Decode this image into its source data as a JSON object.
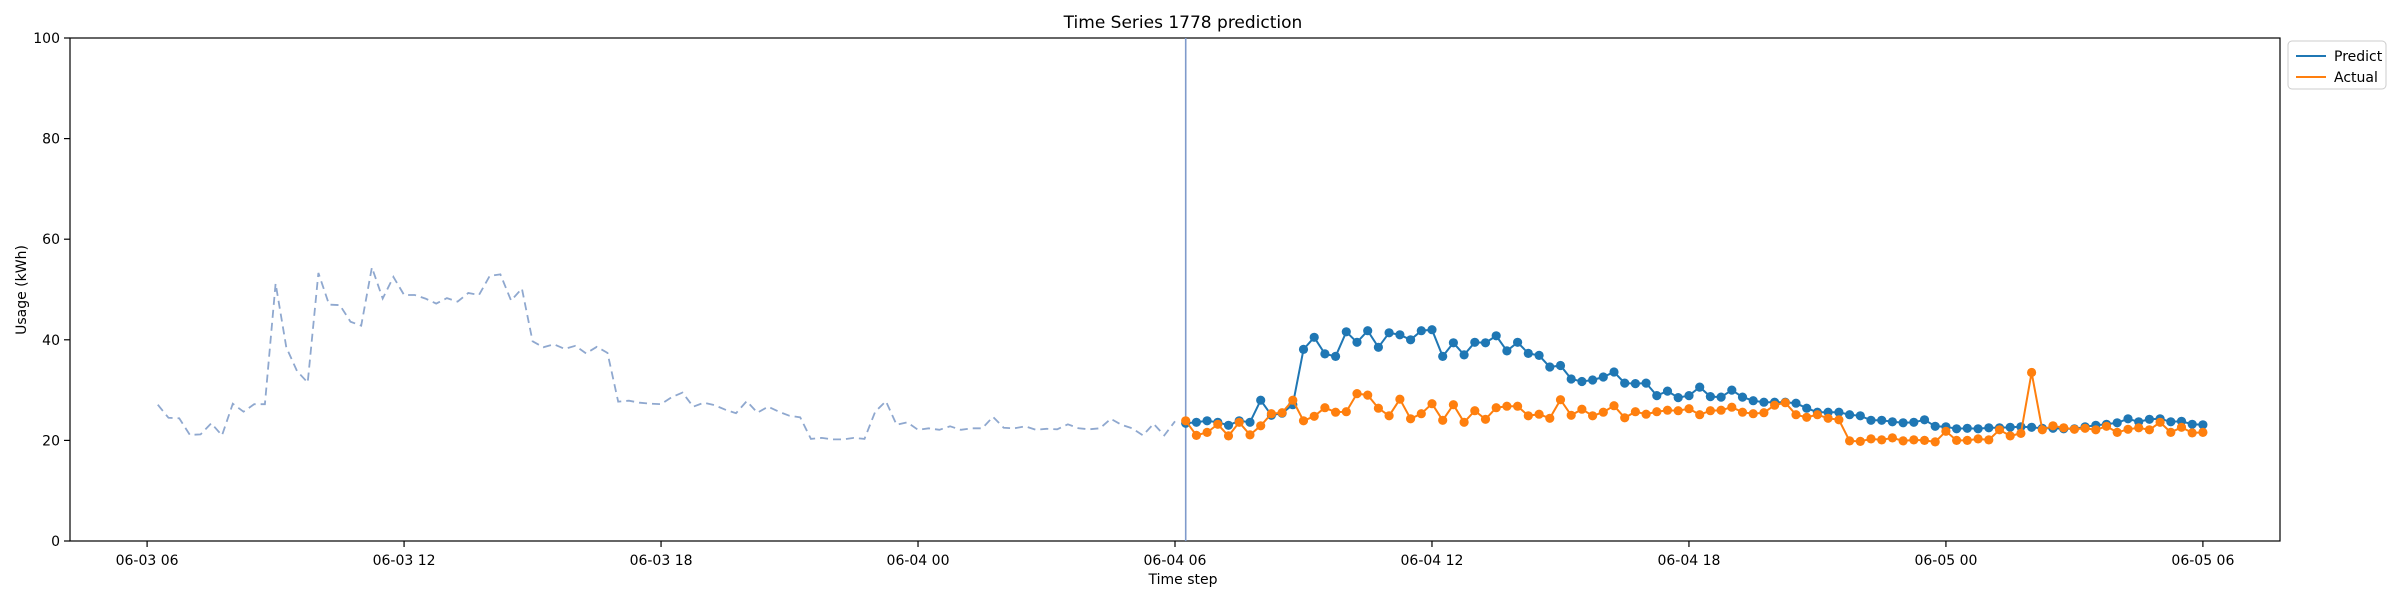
{
  "chart_data": {
    "type": "line",
    "title": "Time Series 1778 prediction",
    "xlabel": "Time step",
    "ylabel": "Usage (kWh)",
    "ylim": [
      0,
      100
    ],
    "yticks": [
      0,
      20,
      40,
      60,
      80,
      100
    ],
    "xlim": [
      "06-03 04:12",
      "06-05 07:48"
    ],
    "xticks": [
      {
        "t": "06-03 06:00",
        "label": "06-03 06"
      },
      {
        "t": "06-03 12:00",
        "label": "06-03 12"
      },
      {
        "t": "06-03 18:00",
        "label": "06-03 18"
      },
      {
        "t": "06-04 00:00",
        "label": "06-04 00"
      },
      {
        "t": "06-04 06:00",
        "label": "06-04 06"
      },
      {
        "t": "06-04 12:00",
        "label": "06-04 12"
      },
      {
        "t": "06-04 18:00",
        "label": "06-04 18"
      },
      {
        "t": "06-05 00:00",
        "label": "06-05 00"
      },
      {
        "t": "06-05 06:00",
        "label": "06-05 06"
      }
    ],
    "grid": false,
    "legend_position": "top-right, outside plot",
    "forecast_start": "06-04 06:15",
    "history": {
      "style": "dashed",
      "color": "#8fa8cf",
      "start": "06-03 06:15",
      "step_minutes": 15,
      "values": [
        27.1,
        24.5,
        24.4,
        21.1,
        21.2,
        23.4,
        21.0,
        27.3,
        25.7,
        27.2,
        27.2,
        51.2,
        38.5,
        33.8,
        31.5,
        53.3,
        47.0,
        46.9,
        43.6,
        42.8,
        54.4,
        48.2,
        52.5,
        48.9,
        48.9,
        48.2,
        47.2,
        48.3,
        47.6,
        49.3,
        48.9,
        52.7,
        53.0,
        47.8,
        50.2,
        39.7,
        38.5,
        39.1,
        38.2,
        38.8,
        37.3,
        38.6,
        37.4,
        27.7,
        27.9,
        27.5,
        27.3,
        27.2,
        28.6,
        29.5,
        26.7,
        27.5,
        27.0,
        26.1,
        25.4,
        27.8,
        25.5,
        26.7,
        25.7,
        24.9,
        24.6,
        20.3,
        20.5,
        20.2,
        20.2,
        20.5,
        20.3,
        25.7,
        27.8,
        23.1,
        23.6,
        22.1,
        22.4,
        22.1,
        22.8,
        22.1,
        22.4,
        22.4,
        24.7,
        22.5,
        22.4,
        22.8,
        22.1,
        22.3,
        22.2,
        23.2,
        22.4,
        22.2,
        22.4,
        24.3,
        23.1,
        22.4,
        21.0,
        23.3,
        21.0,
        23.8
      ]
    },
    "x": {
      "start": "06-04 06:15",
      "step_minutes": 15,
      "count": 96
    },
    "series": [
      {
        "name": "Predict",
        "color": "#1f77b4",
        "values": [
          23.4,
          23.6,
          23.9,
          23.6,
          23.0,
          23.9,
          23.6,
          28.0,
          25.0,
          25.4,
          27.1,
          38.1,
          40.5,
          37.2,
          36.7,
          41.6,
          39.5,
          41.8,
          38.5,
          41.4,
          41.0,
          40.0,
          41.8,
          42.0,
          36.7,
          39.4,
          37.0,
          39.5,
          39.4,
          40.8,
          37.8,
          39.5,
          37.3,
          36.9,
          34.6,
          34.9,
          32.2,
          31.7,
          32.0,
          32.6,
          33.6,
          31.4,
          31.3,
          31.4,
          28.9,
          29.8,
          28.5,
          28.9,
          30.6,
          28.7,
          28.6,
          30.0,
          28.6,
          27.9,
          27.6,
          27.6,
          27.6,
          27.4,
          26.4,
          25.6,
          25.6,
          25.6,
          25.1,
          24.9,
          24.0,
          24.0,
          23.7,
          23.5,
          23.6,
          24.1,
          22.8,
          22.7,
          22.3,
          22.4,
          22.3,
          22.5,
          22.5,
          22.6,
          22.7,
          22.6,
          22.4,
          22.4,
          22.3,
          22.3,
          22.7,
          23.0,
          23.2,
          23.5,
          24.3,
          23.7,
          24.2,
          24.3,
          23.7,
          23.8,
          23.2,
          23.1
        ]
      },
      {
        "name": "Actual",
        "color": "#ff7f0e",
        "values": [
          23.9,
          21.0,
          21.6,
          23.2,
          20.9,
          23.6,
          21.1,
          22.9,
          25.3,
          25.5,
          28.0,
          23.9,
          24.8,
          26.5,
          25.6,
          25.7,
          29.3,
          29.0,
          26.4,
          24.9,
          28.2,
          24.3,
          25.3,
          27.3,
          24.0,
          27.1,
          23.6,
          25.9,
          24.2,
          26.5,
          26.8,
          26.8,
          24.9,
          25.2,
          24.4,
          28.1,
          25.0,
          26.2,
          24.9,
          25.6,
          26.9,
          24.5,
          25.7,
          25.2,
          25.7,
          26.0,
          25.9,
          26.3,
          25.1,
          25.9,
          26.0,
          26.6,
          25.6,
          25.3,
          25.5,
          27.0,
          27.5,
          25.1,
          24.6,
          25.1,
          24.4,
          24.1,
          19.9,
          19.8,
          20.3,
          20.1,
          20.5,
          19.9,
          20.1,
          20.0,
          19.7,
          21.8,
          20.0,
          20.0,
          20.3,
          20.1,
          22.1,
          20.9,
          21.4,
          33.5,
          22.1,
          22.9,
          22.5,
          22.2,
          22.4,
          22.1,
          22.8,
          21.6,
          22.2,
          22.5,
          22.1,
          23.6,
          21.6,
          22.6,
          21.5,
          21.6
        ]
      }
    ]
  }
}
